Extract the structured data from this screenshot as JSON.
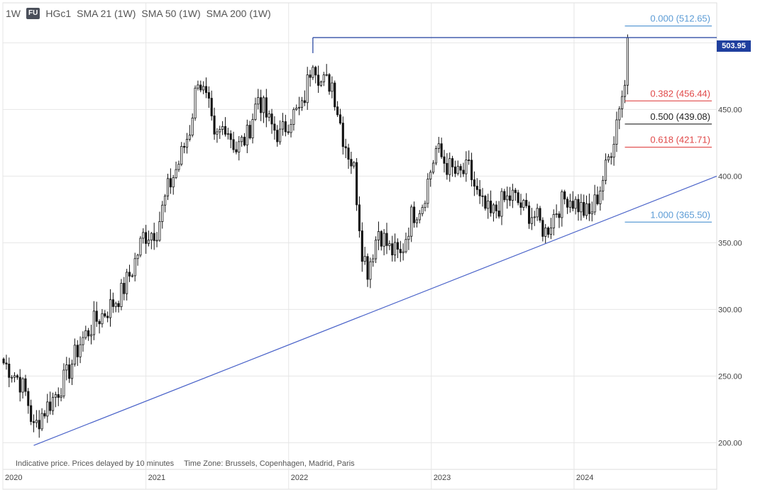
{
  "toolbar": {
    "timeframe": "1W",
    "badge": "FU",
    "symbol": "HGc1",
    "indicators": [
      "SMA 21 (1W)",
      "SMA 50 (1W)",
      "SMA 200 (1W)"
    ]
  },
  "footnote": {
    "delay": "Indicative price. Prices delayed by 10 minutes",
    "timezone": "Time Zone: Brussels, Copenhagen, Madrid, Paris"
  },
  "last_price": "503.95",
  "colors": {
    "candle": "#111111",
    "trendline": "#4a63c9",
    "price_line": "#1f3f9e",
    "fib_blue": "#5b9bd5",
    "fib_red": "#e04848",
    "fib_black": "#222222"
  },
  "chart_data": {
    "type": "candlestick",
    "frequency": "weekly",
    "y_axis": {
      "position": "right",
      "range": [
        180,
        530
      ],
      "ticks": [
        "200.00",
        "250.00",
        "300.00",
        "350.00",
        "400.00",
        "450.00"
      ]
    },
    "x_axis": {
      "range": [
        "2020-01-01",
        "2024-12-31"
      ],
      "ticks": [
        {
          "label": "2020",
          "date": "2020-01-01"
        },
        {
          "label": "2021",
          "date": "2021-01-01"
        },
        {
          "label": "2022",
          "date": "2022-01-01"
        },
        {
          "label": "2023",
          "date": "2023-01-01"
        },
        {
          "label": "2024",
          "date": "2024-01-01"
        }
      ]
    },
    "grid": true,
    "price_path": [
      [
        "2020-01-03",
        260
      ],
      [
        "2020-01-20",
        255
      ],
      [
        "2020-02-10",
        248
      ],
      [
        "2020-03-02",
        235
      ],
      [
        "2020-03-20",
        210
      ],
      [
        "2020-04-10",
        222
      ],
      [
        "2020-05-08",
        233
      ],
      [
        "2020-06-12",
        250
      ],
      [
        "2020-07-17",
        275
      ],
      [
        "2020-08-21",
        290
      ],
      [
        "2020-09-25",
        300
      ],
      [
        "2020-10-30",
        312
      ],
      [
        "2020-11-27",
        330
      ],
      [
        "2020-12-25",
        355
      ],
      [
        "2021-01-29",
        360
      ],
      [
        "2021-02-26",
        390
      ],
      [
        "2021-03-26",
        410
      ],
      [
        "2021-04-23",
        435
      ],
      [
        "2021-05-14",
        475
      ],
      [
        "2021-06-11",
        450
      ],
      [
        "2021-06-25",
        425
      ],
      [
        "2021-07-23",
        440
      ],
      [
        "2021-08-20",
        420
      ],
      [
        "2021-09-17",
        430
      ],
      [
        "2021-10-15",
        460
      ],
      [
        "2021-11-12",
        440
      ],
      [
        "2021-12-10",
        430
      ],
      [
        "2022-01-07",
        445
      ],
      [
        "2022-02-04",
        450
      ],
      [
        "2022-03-04",
        490
      ],
      [
        "2022-03-25",
        470
      ],
      [
        "2022-04-22",
        470
      ],
      [
        "2022-05-20",
        430
      ],
      [
        "2022-06-17",
        405
      ],
      [
        "2022-07-08",
        345
      ],
      [
        "2022-07-22",
        330
      ],
      [
        "2022-08-19",
        360
      ],
      [
        "2022-09-16",
        345
      ],
      [
        "2022-10-14",
        340
      ],
      [
        "2022-11-11",
        370
      ],
      [
        "2022-12-09",
        380
      ],
      [
        "2023-01-13",
        420
      ],
      [
        "2023-02-10",
        408
      ],
      [
        "2023-03-10",
        400
      ],
      [
        "2023-04-07",
        405
      ],
      [
        "2023-05-05",
        380
      ],
      [
        "2023-06-02",
        370
      ],
      [
        "2023-06-30",
        380
      ],
      [
        "2023-07-28",
        385
      ],
      [
        "2023-08-25",
        375
      ],
      [
        "2023-09-22",
        370
      ],
      [
        "2023-10-20",
        358
      ],
      [
        "2023-11-17",
        375
      ],
      [
        "2023-12-15",
        385
      ],
      [
        "2024-01-12",
        378
      ],
      [
        "2024-02-09",
        370
      ],
      [
        "2024-03-01",
        385
      ],
      [
        "2024-03-22",
        405
      ],
      [
        "2024-04-12",
        430
      ],
      [
        "2024-04-26",
        455
      ],
      [
        "2024-05-10",
        468
      ],
      [
        "2024-05-17",
        504
      ]
    ],
    "annotations": {
      "trendline": {
        "from": [
          "2020-03-20",
          198
        ],
        "to": [
          "2024-12-31",
          400
        ]
      },
      "horizontal_line": {
        "from_date": "2022-03-04",
        "value": 503.95,
        "label": "503.95"
      },
      "fibonacci": {
        "start_date": "2024-05-10",
        "levels": [
          {
            "ratio": "0.000",
            "value": 512.65,
            "label": "0.000 (512.65)",
            "color": "#5b9bd5"
          },
          {
            "ratio": "0.382",
            "value": 456.44,
            "label": "0.382 (456.44)",
            "color": "#e04848"
          },
          {
            "ratio": "0.500",
            "value": 439.08,
            "label": "0.500 (439.08)",
            "color": "#222222"
          },
          {
            "ratio": "0.618",
            "value": 421.71,
            "label": "0.618 (421.71)",
            "color": "#e04848"
          },
          {
            "ratio": "1.000",
            "value": 365.5,
            "label": "1.000 (365.50)",
            "color": "#5b9bd5"
          }
        ]
      }
    }
  }
}
